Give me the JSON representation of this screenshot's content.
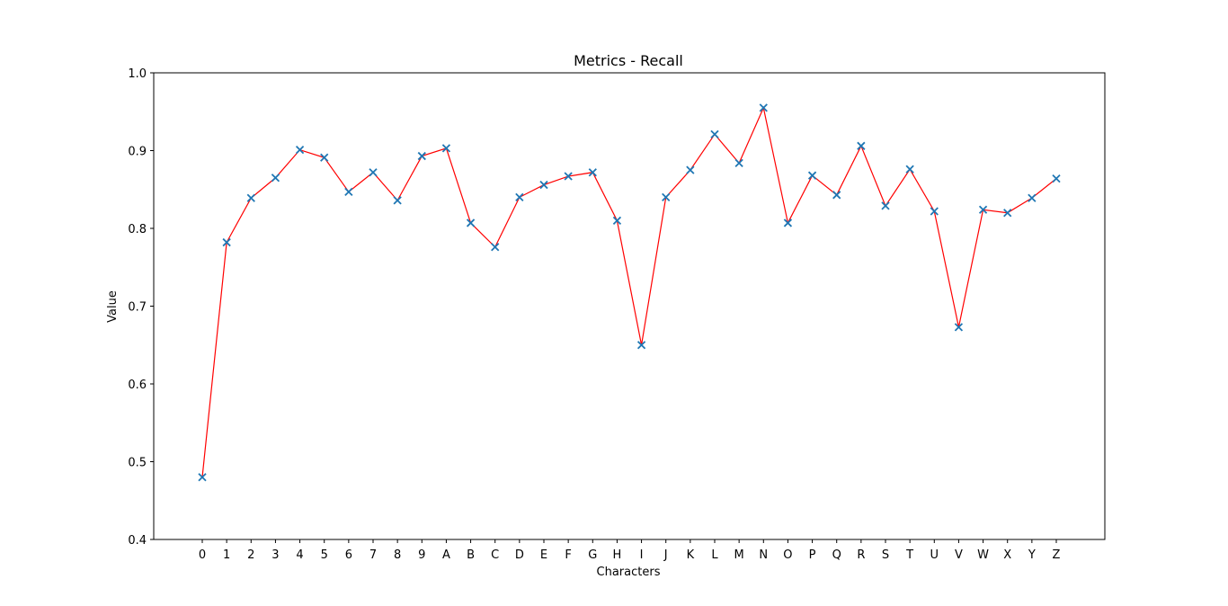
{
  "chart_data": {
    "type": "line",
    "title": "Metrics - Recall",
    "xlabel": "Characters",
    "ylabel": "Value",
    "ylim": [
      0.4,
      1.0
    ],
    "yticks": [
      "0.4",
      "0.5",
      "0.6",
      "0.7",
      "0.8",
      "0.9",
      "1.0"
    ],
    "grid": false,
    "line_color": "#ff0000",
    "marker": "x",
    "marker_color": "#1f77b4",
    "categories": [
      "0",
      "1",
      "2",
      "3",
      "4",
      "5",
      "6",
      "7",
      "8",
      "9",
      "A",
      "B",
      "C",
      "D",
      "E",
      "F",
      "G",
      "H",
      "I",
      "J",
      "K",
      "L",
      "M",
      "N",
      "O",
      "P",
      "Q",
      "R",
      "S",
      "T",
      "U",
      "V",
      "W",
      "X",
      "Y",
      "Z"
    ],
    "values": [
      0.48,
      0.782,
      0.839,
      0.865,
      0.901,
      0.891,
      0.847,
      0.872,
      0.836,
      0.893,
      0.903,
      0.807,
      0.776,
      0.84,
      0.856,
      0.867,
      0.872,
      0.81,
      0.65,
      0.84,
      0.875,
      0.921,
      0.884,
      0.955,
      0.807,
      0.868,
      0.843,
      0.906,
      0.829,
      0.876,
      0.822,
      0.673,
      0.824,
      0.82,
      0.839,
      0.864
    ]
  }
}
